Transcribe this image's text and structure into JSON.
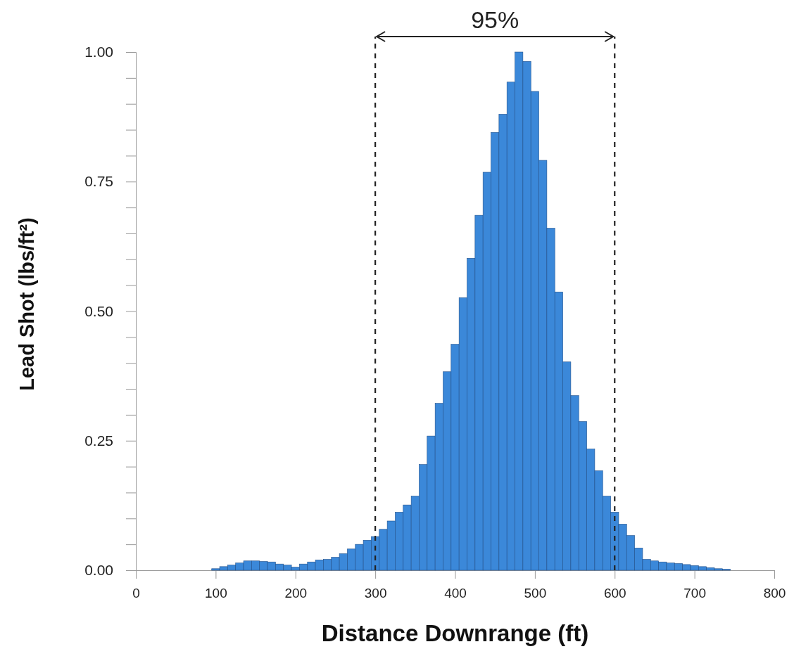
{
  "chart_data": {
    "type": "histogram",
    "xlabel": "Distance Downrange (ft)",
    "ylabel": "Lead Shot (lbs/ft²)",
    "bins": [
      95,
      105,
      115,
      125,
      135,
      145,
      155,
      165,
      175,
      185,
      195,
      205,
      215,
      225,
      235,
      245,
      255,
      265,
      275,
      285,
      295,
      305,
      315,
      325,
      335,
      345,
      355,
      365,
      375,
      385,
      395,
      405,
      415,
      425,
      435,
      445,
      455,
      465,
      475,
      485,
      495,
      505,
      515,
      525,
      535,
      545,
      555,
      565,
      575,
      585,
      595,
      605,
      615,
      625,
      635,
      645,
      655,
      665,
      675,
      685,
      695,
      705,
      715,
      725,
      735,
      745
    ],
    "values": [
      0.003,
      0.007,
      0.01,
      0.014,
      0.018,
      0.018,
      0.017,
      0.016,
      0.012,
      0.01,
      0.006,
      0.012,
      0.016,
      0.02,
      0.021,
      0.025,
      0.032,
      0.041,
      0.05,
      0.058,
      0.065,
      0.079,
      0.095,
      0.112,
      0.126,
      0.143,
      0.204,
      0.259,
      0.322,
      0.383,
      0.436,
      0.526,
      0.602,
      0.685,
      0.768,
      0.845,
      0.88,
      0.942,
      1.0,
      0.982,
      0.924,
      0.791,
      0.66,
      0.537,
      0.402,
      0.337,
      0.287,
      0.234,
      0.192,
      0.143,
      0.112,
      0.089,
      0.067,
      0.043,
      0.021,
      0.018,
      0.016,
      0.014,
      0.013,
      0.011,
      0.009,
      0.007,
      0.005,
      0.003,
      0.002
    ],
    "color": "#3b88d9",
    "xlim": [
      0,
      800
    ],
    "xticks": [
      0,
      100,
      200,
      300,
      400,
      500,
      600,
      700,
      800
    ],
    "ylim": [
      0,
      1
    ],
    "yticks": [
      {
        "value": 0,
        "label": "0.00"
      },
      {
        "value": 0.05,
        "label": null
      },
      {
        "value": 0.1,
        "label": null
      },
      {
        "value": 0.15,
        "label": null
      },
      {
        "value": 0.2,
        "label": null
      },
      {
        "value": 0.25,
        "label": "0.25"
      },
      {
        "value": 0.3,
        "label": null
      },
      {
        "value": 0.35,
        "label": null
      },
      {
        "value": 0.4,
        "label": null
      },
      {
        "value": 0.45,
        "label": null
      },
      {
        "value": 0.5,
        "label": "0.50"
      },
      {
        "value": 0.55,
        "label": null
      },
      {
        "value": 0.6,
        "label": null
      },
      {
        "value": 0.65,
        "label": null
      },
      {
        "value": 0.7,
        "label": null
      },
      {
        "value": 0.75,
        "label": "0.75"
      },
      {
        "value": 0.8,
        "label": null
      },
      {
        "value": 0.85,
        "label": null
      },
      {
        "value": 0.9,
        "label": null
      },
      {
        "value": 0.95,
        "label": null
      },
      {
        "value": 1,
        "label": "1.00"
      }
    ],
    "grid": false,
    "ref_lines": [
      {
        "axis": "x",
        "value": 300,
        "line_style": "dashed",
        "color": "#222222"
      },
      {
        "axis": "x",
        "value": 600,
        "line_style": "dashed",
        "color": "#222222"
      }
    ],
    "annotations": [
      "95%"
    ]
  }
}
